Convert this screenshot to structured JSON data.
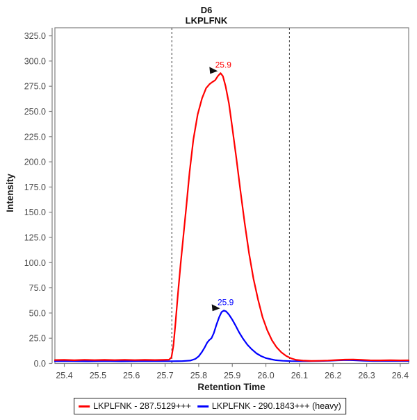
{
  "title": {
    "line1": "D6",
    "line2": "LKPLFNK"
  },
  "chart_data": {
    "type": "line",
    "title": "D6",
    "subtitle": "LKPLFNK",
    "xlabel": "Retention Time",
    "ylabel": "Intensity",
    "xlim": [
      25.372,
      26.425
    ],
    "ylim": [
      0,
      333
    ],
    "grid": false,
    "legend_position": "bottom",
    "x_ticks": {
      "values": [
        25.4,
        25.5,
        25.6,
        25.7,
        25.8,
        25.9,
        26.0,
        26.1,
        26.2,
        26.3,
        26.4
      ],
      "labels": [
        "25.4",
        "25.5",
        "25.6",
        "25.7",
        "25.8",
        "25.9",
        "26.0",
        "26.1",
        "26.2",
        "26.3",
        "26.4"
      ]
    },
    "y_ticks": {
      "values": [
        0,
        25,
        50,
        75,
        100,
        125,
        150,
        175,
        200,
        225,
        250,
        275,
        300,
        325
      ],
      "labels": [
        "0.0",
        "25.0",
        "50.0",
        "75.0",
        "100.0",
        "125.0",
        "150.0",
        "175.0",
        "200.0",
        "225.0",
        "250.0",
        "275.0",
        "300.0",
        "325.0"
      ]
    },
    "peak_boundaries": [
      25.72,
      26.07
    ],
    "series": [
      {
        "name": "LKPLFNK - 287.5129+++",
        "color": "#ff0000",
        "peak_annotation": {
          "label": "25.9",
          "x": 25.865,
          "y": 288
        },
        "points": [
          [
            25.372,
            3.4
          ],
          [
            25.4,
            3.5
          ],
          [
            25.43,
            3.2
          ],
          [
            25.46,
            3.6
          ],
          [
            25.49,
            3.3
          ],
          [
            25.52,
            3.5
          ],
          [
            25.55,
            3.3
          ],
          [
            25.58,
            3.6
          ],
          [
            25.61,
            3.3
          ],
          [
            25.64,
            3.5
          ],
          [
            25.67,
            3.4
          ],
          [
            25.695,
            3.5
          ],
          [
            25.712,
            3.7
          ],
          [
            25.719,
            6
          ],
          [
            25.725,
            18
          ],
          [
            25.731,
            40
          ],
          [
            25.738,
            68
          ],
          [
            25.746,
            98
          ],
          [
            25.755,
            128
          ],
          [
            25.763,
            155
          ],
          [
            25.773,
            190
          ],
          [
            25.784,
            222
          ],
          [
            25.797,
            247
          ],
          [
            25.81,
            263
          ],
          [
            25.822,
            273
          ],
          [
            25.832,
            277
          ],
          [
            25.84,
            279
          ],
          [
            25.849,
            281
          ],
          [
            25.857,
            285
          ],
          [
            25.865,
            288
          ],
          [
            25.872,
            285
          ],
          [
            25.88,
            275
          ],
          [
            25.89,
            258
          ],
          [
            25.9,
            234
          ],
          [
            25.912,
            204
          ],
          [
            25.924,
            172
          ],
          [
            25.937,
            139
          ],
          [
            25.95,
            109
          ],
          [
            25.963,
            84
          ],
          [
            25.977,
            63
          ],
          [
            25.99,
            46
          ],
          [
            26.004,
            33
          ],
          [
            26.018,
            23
          ],
          [
            26.032,
            16
          ],
          [
            26.046,
            11
          ],
          [
            26.06,
            7.5
          ],
          [
            26.075,
            5
          ],
          [
            26.09,
            3.5
          ],
          [
            26.11,
            2.8
          ],
          [
            26.135,
            2.5
          ],
          [
            26.16,
            2.6
          ],
          [
            26.185,
            2.9
          ],
          [
            26.21,
            3.4
          ],
          [
            26.235,
            3.8
          ],
          [
            26.26,
            3.9
          ],
          [
            26.285,
            3.6
          ],
          [
            26.31,
            3.1
          ],
          [
            26.34,
            3.0
          ],
          [
            26.37,
            3.2
          ],
          [
            26.4,
            3.0
          ],
          [
            26.425,
            3.1
          ]
        ]
      },
      {
        "name": "LKPLFNK - 290.1843+++ (heavy)",
        "color": "#0000ff",
        "peak_annotation": {
          "label": "25.9",
          "x": 25.872,
          "y": 52.5
        },
        "points": [
          [
            25.372,
            2.2
          ],
          [
            25.42,
            2.2
          ],
          [
            25.47,
            2.1
          ],
          [
            25.52,
            2.3
          ],
          [
            25.57,
            2.1
          ],
          [
            25.62,
            2.2
          ],
          [
            25.67,
            2.2
          ],
          [
            25.72,
            2.2
          ],
          [
            25.75,
            2.3
          ],
          [
            25.775,
            2.8
          ],
          [
            25.79,
            4.5
          ],
          [
            25.8,
            7
          ],
          [
            25.81,
            11.5
          ],
          [
            25.818,
            16
          ],
          [
            25.825,
            20.5
          ],
          [
            25.831,
            23
          ],
          [
            25.838,
            25
          ],
          [
            25.845,
            30
          ],
          [
            25.853,
            38.5
          ],
          [
            25.861,
            46
          ],
          [
            25.868,
            51
          ],
          [
            25.875,
            52.5
          ],
          [
            25.882,
            51.5
          ],
          [
            25.89,
            48.5
          ],
          [
            25.899,
            44
          ],
          [
            25.909,
            38
          ],
          [
            25.92,
            31
          ],
          [
            25.932,
            24.5
          ],
          [
            25.945,
            18.5
          ],
          [
            25.958,
            14
          ],
          [
            25.972,
            10
          ],
          [
            25.986,
            7.2
          ],
          [
            26.0,
            5.3
          ],
          [
            26.015,
            4.1
          ],
          [
            26.03,
            3.2
          ],
          [
            26.05,
            2.6
          ],
          [
            26.075,
            2.3
          ],
          [
            26.1,
            2.2
          ],
          [
            26.13,
            2.2
          ],
          [
            26.16,
            2.4
          ],
          [
            26.19,
            2.7
          ],
          [
            26.215,
            3.1
          ],
          [
            26.24,
            3.3
          ],
          [
            26.265,
            3.1
          ],
          [
            26.29,
            2.7
          ],
          [
            26.32,
            2.4
          ],
          [
            26.36,
            2.4
          ],
          [
            26.4,
            2.4
          ],
          [
            26.425,
            2.4
          ]
        ]
      }
    ]
  },
  "legend": {
    "items": [
      {
        "label": "LKPLFNK - 287.5129+++",
        "color": "#ff0000"
      },
      {
        "label": "LKPLFNK - 290.1843+++ (heavy)",
        "color": "#0000ff"
      }
    ]
  },
  "style_colors": {
    "plot_border": "#808080",
    "tick_label": "#4a4a4a",
    "boundary_line": "#3c3c3c",
    "annotation_arrow": "#111111"
  }
}
